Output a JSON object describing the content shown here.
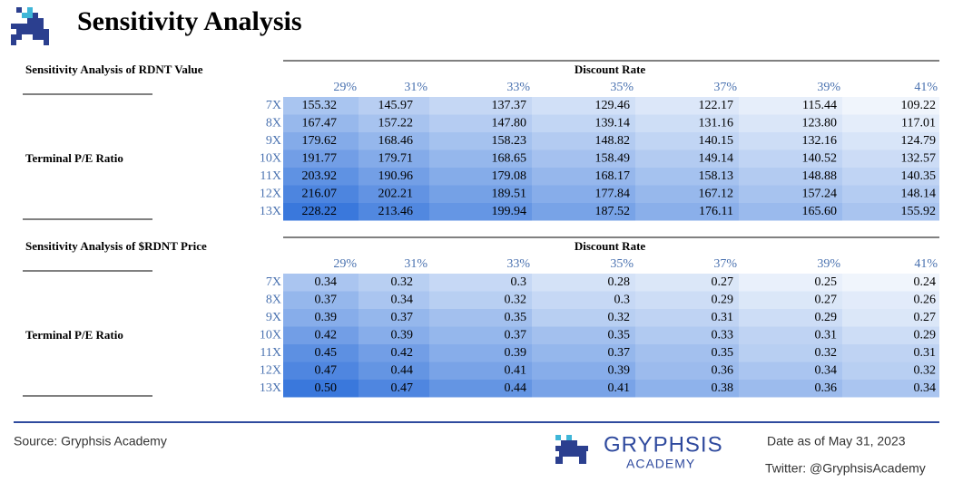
{
  "header": {
    "title": "Sensitivity Analysis"
  },
  "tables": [
    {
      "title": "Sensitivity Analysis of RDNT Value",
      "column_group": "Discount Rate",
      "row_group": "Terminal P/E Ratio",
      "columns": [
        "29%",
        "31%",
        "33%",
        "35%",
        "37%",
        "39%",
        "41%"
      ],
      "row_labels": [
        "7X",
        "8X",
        "9X",
        "10X",
        "11X",
        "12X",
        "13X"
      ],
      "rows": [
        [
          "155.32",
          "145.97",
          "137.37",
          "129.46",
          "122.17",
          "115.44",
          "109.22"
        ],
        [
          "167.47",
          "157.22",
          "147.80",
          "139.14",
          "131.16",
          "123.80",
          "117.01"
        ],
        [
          "179.62",
          "168.46",
          "158.23",
          "148.82",
          "140.15",
          "132.16",
          "124.79"
        ],
        [
          "191.77",
          "179.71",
          "168.65",
          "158.49",
          "149.14",
          "140.52",
          "132.57"
        ],
        [
          "203.92",
          "190.96",
          "179.08",
          "168.17",
          "158.13",
          "148.88",
          "140.35"
        ],
        [
          "216.07",
          "202.21",
          "189.51",
          "177.84",
          "167.12",
          "157.24",
          "148.14"
        ],
        [
          "228.22",
          "213.46",
          "199.94",
          "187.52",
          "176.11",
          "165.60",
          "155.92"
        ]
      ]
    },
    {
      "title": "Sensitivity Analysis of $RDNT Price",
      "column_group": "Discount Rate",
      "row_group": "Terminal P/E Ratio",
      "columns": [
        "29%",
        "31%",
        "33%",
        "35%",
        "37%",
        "39%",
        "41%"
      ],
      "row_labels": [
        "7X",
        "8X",
        "9X",
        "10X",
        "11X",
        "12X",
        "13X"
      ],
      "rows": [
        [
          "0.34",
          "0.32",
          "0.3",
          "0.28",
          "0.27",
          "0.25",
          "0.24"
        ],
        [
          "0.37",
          "0.34",
          "0.32",
          "0.3",
          "0.29",
          "0.27",
          "0.26"
        ],
        [
          "0.39",
          "0.37",
          "0.35",
          "0.32",
          "0.31",
          "0.29",
          "0.27"
        ],
        [
          "0.42",
          "0.39",
          "0.37",
          "0.35",
          "0.33",
          "0.31",
          "0.29"
        ],
        [
          "0.45",
          "0.42",
          "0.39",
          "0.37",
          "0.35",
          "0.32",
          "0.31"
        ],
        [
          "0.47",
          "0.44",
          "0.41",
          "0.39",
          "0.36",
          "0.34",
          "0.32"
        ],
        [
          "0.50",
          "0.47",
          "0.44",
          "0.41",
          "0.38",
          "0.36",
          "0.34"
        ]
      ]
    }
  ],
  "footer": {
    "source": "Source: Gryphsis Academy",
    "brand": "GRYPHSIS",
    "brand_sub": "ACADEMY",
    "date": "Date as of May 31, 2023",
    "twitter": "Twitter: @GryphsisAcademy"
  }
}
